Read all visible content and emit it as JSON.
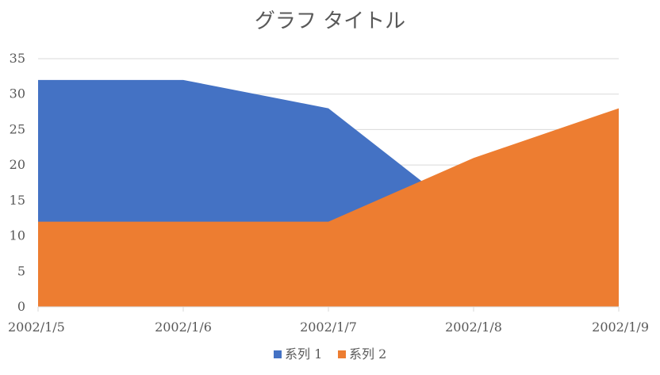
{
  "chart_data": {
    "type": "area",
    "title": "グラフ タイトル",
    "xlabel": "",
    "ylabel": "",
    "categories": [
      "2002/1/5",
      "2002/1/6",
      "2002/1/7",
      "2002/1/8",
      "2002/1/9"
    ],
    "series": [
      {
        "name": "系列 1",
        "values": [
          32,
          32,
          28,
          12,
          12
        ],
        "color": "#4472c4"
      },
      {
        "name": "系列 2",
        "values": [
          12,
          12,
          12,
          21,
          28
        ],
        "color": "#ed7d31"
      }
    ],
    "ylim": [
      0,
      35
    ],
    "yticks": [
      0,
      5,
      10,
      15,
      20,
      25,
      30,
      35
    ],
    "grid": true,
    "legend_position": "bottom"
  }
}
